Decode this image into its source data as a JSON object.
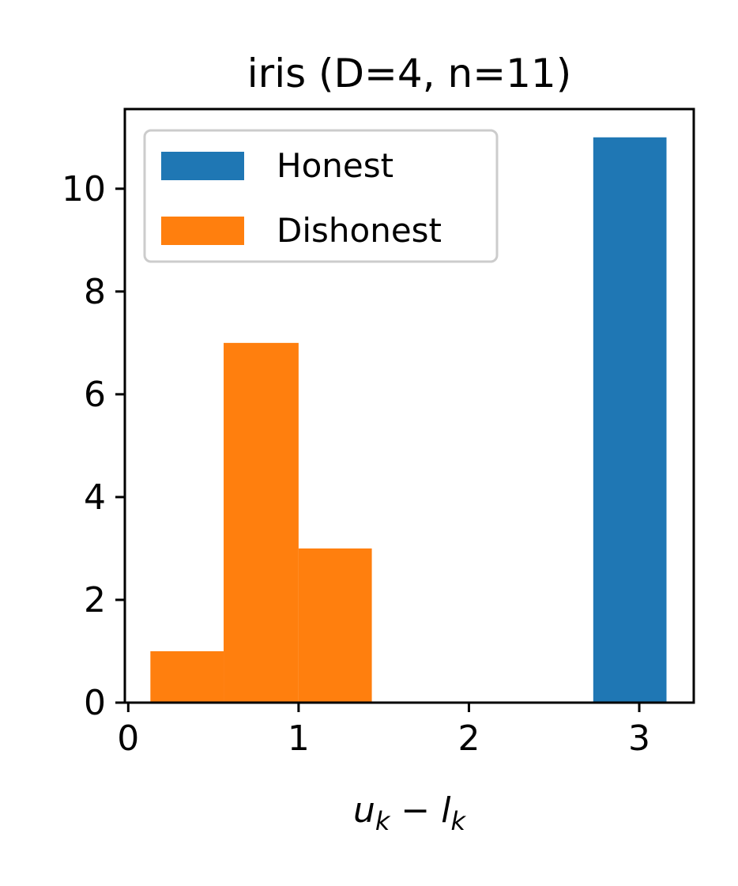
{
  "chart_data": {
    "type": "bar",
    "title": "iris (D=4, n=11)",
    "xlabel": "u_k − l_k",
    "ylabel": "",
    "xlim": [
      -0.02,
      3.32
    ],
    "ylim": [
      0,
      11.55
    ],
    "xticks": [
      0,
      1,
      2,
      3
    ],
    "yticks": [
      0,
      2,
      4,
      6,
      8,
      10
    ],
    "legend_position": "top-left",
    "series": [
      {
        "name": "Honest",
        "color": "#1f77b4",
        "bins": [
          {
            "x0": 2.73,
            "x1": 3.16,
            "count": 11
          }
        ]
      },
      {
        "name": "Dishonest",
        "color": "#ff7f0e",
        "bins": [
          {
            "x0": 0.13,
            "x1": 0.56,
            "count": 1
          },
          {
            "x0": 0.56,
            "x1": 1.0,
            "count": 7
          },
          {
            "x0": 1.0,
            "x1": 1.43,
            "count": 3
          }
        ]
      }
    ]
  }
}
